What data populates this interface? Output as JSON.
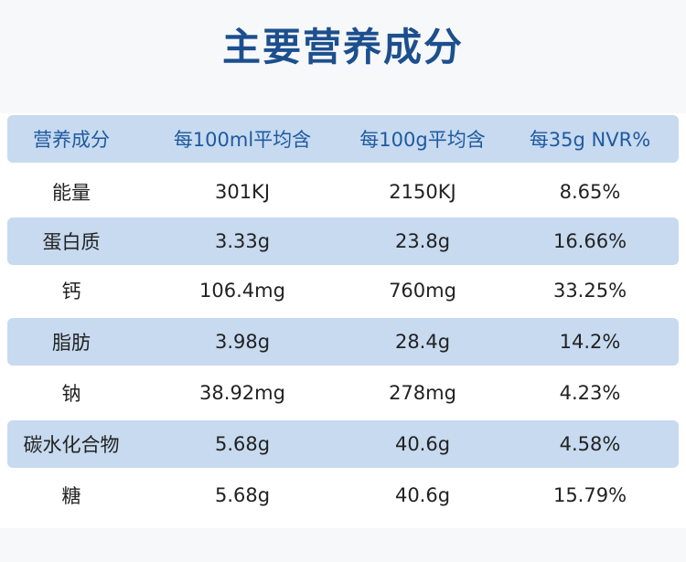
{
  "header": {
    "title": "主要营养成分"
  },
  "table": {
    "columns": [
      "营养成分",
      "每100ml平均含",
      "每100g平均含",
      "每35g NVR%"
    ],
    "rows": [
      [
        "能量",
        "301KJ",
        "2150KJ",
        "8.65%"
      ],
      [
        "蛋白质",
        "3.33g",
        "23.8g",
        "16.66%"
      ],
      [
        "钙",
        "106.4mg",
        "760mg",
        "33.25%"
      ],
      [
        "脂肪",
        "3.98g",
        "28.4g",
        "14.2%"
      ],
      [
        "钠",
        "38.92mg",
        "278mg",
        "4.23%"
      ],
      [
        "碳水化合物",
        "5.68g",
        "40.6g",
        "4.58%"
      ],
      [
        "糖",
        "5.68g",
        "40.6g",
        "15.79%"
      ]
    ]
  }
}
